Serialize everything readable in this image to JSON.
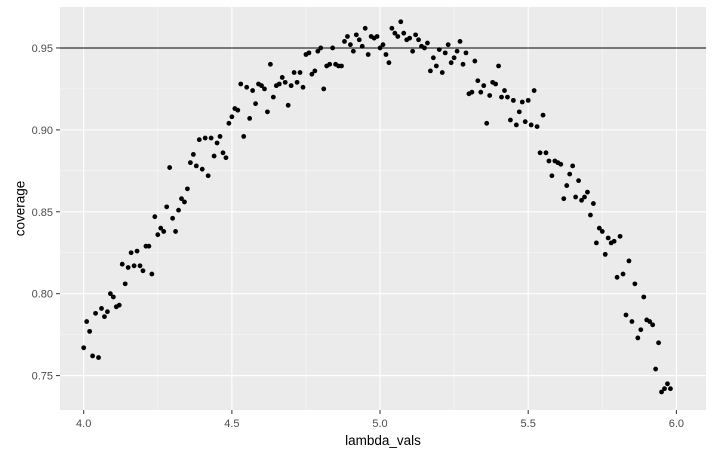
{
  "chart_data": {
    "type": "scatter",
    "xlabel": "lambda_vals",
    "ylabel": "coverage",
    "xlim": [
      3.92,
      6.1
    ],
    "ylim": [
      0.729,
      0.975
    ],
    "x_ticks": [
      4.0,
      4.5,
      5.0,
      5.5,
      6.0
    ],
    "x_tick_labels": [
      "4.0",
      "4.5",
      "5.0",
      "5.5",
      "6.0"
    ],
    "y_ticks": [
      0.75,
      0.8,
      0.85,
      0.9,
      0.95
    ],
    "y_tick_labels": [
      "0.75",
      "0.80",
      "0.85",
      "0.90",
      "0.95"
    ],
    "hline": 0.95,
    "grid": true,
    "colors": {
      "panel": "#ebebeb",
      "grid_major": "#ffffff",
      "points": "#000000",
      "hline": "#000000",
      "tick_label": "#4d4d4d"
    },
    "points": [
      [
        4.0,
        0.767
      ],
      [
        4.01,
        0.783
      ],
      [
        4.02,
        0.777
      ],
      [
        4.03,
        0.762
      ],
      [
        4.04,
        0.788
      ],
      [
        4.05,
        0.761
      ],
      [
        4.06,
        0.791
      ],
      [
        4.07,
        0.786
      ],
      [
        4.08,
        0.789
      ],
      [
        4.09,
        0.8
      ],
      [
        4.1,
        0.798
      ],
      [
        4.11,
        0.792
      ],
      [
        4.12,
        0.793
      ],
      [
        4.13,
        0.818
      ],
      [
        4.14,
        0.806
      ],
      [
        4.15,
        0.816
      ],
      [
        4.16,
        0.825
      ],
      [
        4.17,
        0.817
      ],
      [
        4.18,
        0.826
      ],
      [
        4.19,
        0.817
      ],
      [
        4.2,
        0.814
      ],
      [
        4.21,
        0.829
      ],
      [
        4.22,
        0.829
      ],
      [
        4.23,
        0.812
      ],
      [
        4.24,
        0.847
      ],
      [
        4.25,
        0.836
      ],
      [
        4.26,
        0.84
      ],
      [
        4.27,
        0.838
      ],
      [
        4.28,
        0.853
      ],
      [
        4.29,
        0.877
      ],
      [
        4.3,
        0.846
      ],
      [
        4.31,
        0.838
      ],
      [
        4.32,
        0.851
      ],
      [
        4.33,
        0.858
      ],
      [
        4.34,
        0.856
      ],
      [
        4.35,
        0.864
      ],
      [
        4.36,
        0.88
      ],
      [
        4.37,
        0.885
      ],
      [
        4.38,
        0.878
      ],
      [
        4.39,
        0.894
      ],
      [
        4.4,
        0.876
      ],
      [
        4.41,
        0.895
      ],
      [
        4.42,
        0.872
      ],
      [
        4.43,
        0.895
      ],
      [
        4.44,
        0.884
      ],
      [
        4.45,
        0.892
      ],
      [
        4.46,
        0.896
      ],
      [
        4.47,
        0.886
      ],
      [
        4.48,
        0.883
      ],
      [
        4.49,
        0.904
      ],
      [
        4.5,
        0.908
      ],
      [
        4.51,
        0.913
      ],
      [
        4.52,
        0.912
      ],
      [
        4.53,
        0.928
      ],
      [
        4.54,
        0.896
      ],
      [
        4.55,
        0.926
      ],
      [
        4.56,
        0.907
      ],
      [
        4.57,
        0.924
      ],
      [
        4.58,
        0.916
      ],
      [
        4.59,
        0.928
      ],
      [
        4.6,
        0.927
      ],
      [
        4.61,
        0.925
      ],
      [
        4.62,
        0.911
      ],
      [
        4.63,
        0.94
      ],
      [
        4.64,
        0.92
      ],
      [
        4.65,
        0.927
      ],
      [
        4.66,
        0.928
      ],
      [
        4.67,
        0.932
      ],
      [
        4.68,
        0.929
      ],
      [
        4.69,
        0.915
      ],
      [
        4.7,
        0.927
      ],
      [
        4.71,
        0.935
      ],
      [
        4.72,
        0.929
      ],
      [
        4.73,
        0.935
      ],
      [
        4.74,
        0.926
      ],
      [
        4.75,
        0.946
      ],
      [
        4.76,
        0.947
      ],
      [
        4.77,
        0.934
      ],
      [
        4.78,
        0.936
      ],
      [
        4.79,
        0.948
      ],
      [
        4.8,
        0.95
      ],
      [
        4.81,
        0.925
      ],
      [
        4.82,
        0.939
      ],
      [
        4.83,
        0.94
      ],
      [
        4.84,
        0.95
      ],
      [
        4.85,
        0.94
      ],
      [
        4.86,
        0.939
      ],
      [
        4.87,
        0.939
      ],
      [
        4.88,
        0.954
      ],
      [
        4.89,
        0.957
      ],
      [
        4.9,
        0.952
      ],
      [
        4.91,
        0.948
      ],
      [
        4.92,
        0.958
      ],
      [
        4.93,
        0.955
      ],
      [
        4.94,
        0.951
      ],
      [
        4.95,
        0.962
      ],
      [
        4.96,
        0.946
      ],
      [
        4.97,
        0.957
      ],
      [
        4.98,
        0.956
      ],
      [
        4.99,
        0.957
      ],
      [
        5.0,
        0.95
      ],
      [
        5.01,
        0.952
      ],
      [
        5.02,
        0.946
      ],
      [
        5.03,
        0.941
      ],
      [
        5.04,
        0.962
      ],
      [
        5.05,
        0.959
      ],
      [
        5.06,
        0.957
      ],
      [
        5.07,
        0.966
      ],
      [
        5.08,
        0.959
      ],
      [
        5.09,
        0.955
      ],
      [
        5.1,
        0.956
      ],
      [
        5.11,
        0.948
      ],
      [
        5.12,
        0.958
      ],
      [
        5.13,
        0.955
      ],
      [
        5.14,
        0.951
      ],
      [
        5.15,
        0.95
      ],
      [
        5.16,
        0.953
      ],
      [
        5.17,
        0.936
      ],
      [
        5.18,
        0.944
      ],
      [
        5.19,
        0.939
      ],
      [
        5.2,
        0.949
      ],
      [
        5.21,
        0.935
      ],
      [
        5.22,
        0.947
      ],
      [
        5.23,
        0.952
      ],
      [
        5.24,
        0.941
      ],
      [
        5.25,
        0.944
      ],
      [
        5.26,
        0.948
      ],
      [
        5.27,
        0.954
      ],
      [
        5.28,
        0.94
      ],
      [
        5.29,
        0.947
      ],
      [
        5.3,
        0.922
      ],
      [
        5.31,
        0.923
      ],
      [
        5.32,
        0.942
      ],
      [
        5.33,
        0.93
      ],
      [
        5.34,
        0.923
      ],
      [
        5.35,
        0.927
      ],
      [
        5.36,
        0.904
      ],
      [
        5.37,
        0.921
      ],
      [
        5.38,
        0.929
      ],
      [
        5.39,
        0.928
      ],
      [
        5.4,
        0.939
      ],
      [
        5.41,
        0.92
      ],
      [
        5.42,
        0.924
      ],
      [
        5.43,
        0.92
      ],
      [
        5.44,
        0.906
      ],
      [
        5.45,
        0.918
      ],
      [
        5.46,
        0.903
      ],
      [
        5.47,
        0.911
      ],
      [
        5.48,
        0.917
      ],
      [
        5.49,
        0.905
      ],
      [
        5.5,
        0.918
      ],
      [
        5.51,
        0.903
      ],
      [
        5.52,
        0.924
      ],
      [
        5.53,
        0.902
      ],
      [
        5.54,
        0.886
      ],
      [
        5.55,
        0.909
      ],
      [
        5.56,
        0.886
      ],
      [
        5.57,
        0.881
      ],
      [
        5.58,
        0.872
      ],
      [
        5.59,
        0.881
      ],
      [
        5.6,
        0.88
      ],
      [
        5.61,
        0.879
      ],
      [
        5.62,
        0.858
      ],
      [
        5.63,
        0.866
      ],
      [
        5.64,
        0.873
      ],
      [
        5.65,
        0.878
      ],
      [
        5.66,
        0.859
      ],
      [
        5.67,
        0.869
      ],
      [
        5.68,
        0.857
      ],
      [
        5.69,
        0.859
      ],
      [
        5.7,
        0.862
      ],
      [
        5.71,
        0.848
      ],
      [
        5.72,
        0.855
      ],
      [
        5.73,
        0.831
      ],
      [
        5.74,
        0.84
      ],
      [
        5.75,
        0.838
      ],
      [
        5.76,
        0.824
      ],
      [
        5.77,
        0.834
      ],
      [
        5.78,
        0.831
      ],
      [
        5.79,
        0.832
      ],
      [
        5.8,
        0.81
      ],
      [
        5.81,
        0.835
      ],
      [
        5.82,
        0.812
      ],
      [
        5.83,
        0.787
      ],
      [
        5.84,
        0.82
      ],
      [
        5.85,
        0.783
      ],
      [
        5.86,
        0.806
      ],
      [
        5.87,
        0.773
      ],
      [
        5.88,
        0.778
      ],
      [
        5.89,
        0.798
      ],
      [
        5.9,
        0.784
      ],
      [
        5.91,
        0.783
      ],
      [
        5.92,
        0.781
      ],
      [
        5.93,
        0.754
      ],
      [
        5.94,
        0.77
      ],
      [
        5.95,
        0.74
      ],
      [
        5.96,
        0.742
      ],
      [
        5.97,
        0.745
      ],
      [
        5.98,
        0.742
      ]
    ]
  }
}
